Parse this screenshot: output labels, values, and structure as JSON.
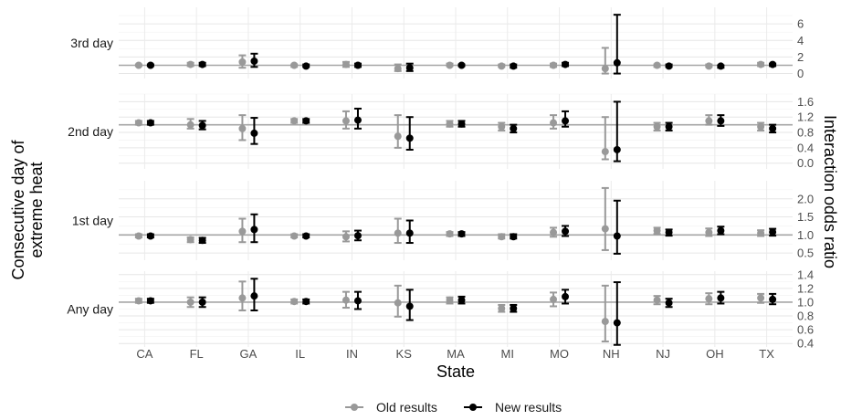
{
  "chart_data": {
    "type": "scatter",
    "subtype": "point-errorbar-facets",
    "xlabel": "State",
    "ylabel_left": [
      "Consecutive day of",
      "extreme heat"
    ],
    "ylabel_right": "Interaction odds ratio",
    "categories": [
      "CA",
      "FL",
      "GA",
      "IL",
      "IN",
      "KS",
      "MA",
      "MI",
      "MO",
      "NH",
      "NJ",
      "OH",
      "TX"
    ],
    "reference_line": 1.0,
    "grid": true,
    "legend_position": "bottom",
    "colors": {
      "old": "#999999",
      "new": "#000000",
      "reference": "#a6a6a6"
    },
    "series": [
      {
        "name": "Old results",
        "color": "#999999",
        "marker": "circle"
      },
      {
        "name": "New results",
        "color": "#000000",
        "marker": "circle"
      }
    ],
    "facets": [
      {
        "label": "3rd day",
        "ylim": [
          -0.6,
          8.0
        ],
        "yticks": [
          0,
          2,
          4,
          6
        ],
        "tick_labels": [
          "0",
          "2",
          "4",
          "6"
        ],
        "old": [
          [
            1.0,
            0.9,
            1.1
          ],
          [
            1.1,
            0.9,
            1.3
          ],
          [
            1.4,
            0.7,
            2.2
          ],
          [
            1.0,
            0.8,
            1.1
          ],
          [
            1.1,
            0.8,
            1.4
          ],
          [
            0.6,
            0.3,
            1.1
          ],
          [
            1.0,
            0.9,
            1.2
          ],
          [
            0.9,
            0.8,
            1.1
          ],
          [
            1.0,
            0.8,
            1.2
          ],
          [
            0.6,
            0.0,
            3.1
          ],
          [
            1.0,
            0.8,
            1.1
          ],
          [
            0.9,
            0.8,
            1.1
          ],
          [
            1.1,
            0.9,
            1.3
          ]
        ],
        "new": [
          [
            1.0,
            0.9,
            1.1
          ],
          [
            1.1,
            0.9,
            1.3
          ],
          [
            1.5,
            0.8,
            2.4
          ],
          [
            0.9,
            0.8,
            1.1
          ],
          [
            1.0,
            0.8,
            1.2
          ],
          [
            0.7,
            0.3,
            1.2
          ],
          [
            1.0,
            0.9,
            1.1
          ],
          [
            0.9,
            0.7,
            1.1
          ],
          [
            1.1,
            0.9,
            1.3
          ],
          [
            1.3,
            0.0,
            7.1
          ],
          [
            0.9,
            0.8,
            1.1
          ],
          [
            0.9,
            0.7,
            1.0
          ],
          [
            1.1,
            0.9,
            1.2
          ]
        ]
      },
      {
        "label": "2nd day",
        "ylim": [
          -0.15,
          1.8
        ],
        "yticks": [
          0.0,
          0.4,
          0.8,
          1.2,
          1.6
        ],
        "tick_labels": [
          "0.0",
          "0.4",
          "0.8",
          "1.2",
          "1.6"
        ],
        "old": [
          [
            1.05,
            1.0,
            1.1
          ],
          [
            1.0,
            0.9,
            1.15
          ],
          [
            0.9,
            0.6,
            1.25
          ],
          [
            1.1,
            1.05,
            1.15
          ],
          [
            1.1,
            0.9,
            1.35
          ],
          [
            0.7,
            0.4,
            1.25
          ],
          [
            1.02,
            0.95,
            1.1
          ],
          [
            0.95,
            0.85,
            1.05
          ],
          [
            1.05,
            0.9,
            1.25
          ],
          [
            0.3,
            0.1,
            1.2
          ],
          [
            0.95,
            0.85,
            1.05
          ],
          [
            1.1,
            1.0,
            1.25
          ],
          [
            0.95,
            0.85,
            1.05
          ]
        ],
        "new": [
          [
            1.05,
            1.0,
            1.1
          ],
          [
            0.98,
            0.88,
            1.1
          ],
          [
            0.78,
            0.5,
            1.18
          ],
          [
            1.1,
            1.05,
            1.15
          ],
          [
            1.12,
            0.9,
            1.42
          ],
          [
            0.65,
            0.35,
            1.2
          ],
          [
            1.02,
            0.95,
            1.1
          ],
          [
            0.9,
            0.8,
            1.0
          ],
          [
            1.1,
            0.95,
            1.35
          ],
          [
            0.35,
            0.05,
            1.6
          ],
          [
            0.95,
            0.85,
            1.05
          ],
          [
            1.1,
            0.97,
            1.25
          ],
          [
            0.9,
            0.8,
            1.0
          ]
        ]
      },
      {
        "label": "1st day",
        "ylim": [
          0.3,
          2.5
        ],
        "yticks": [
          0.5,
          1.0,
          1.5,
          2.0
        ],
        "tick_labels": [
          "0.5",
          "1.0",
          "1.5",
          "2.0"
        ],
        "old": [
          [
            0.97,
            0.93,
            1.02
          ],
          [
            0.87,
            0.8,
            0.93
          ],
          [
            1.1,
            0.8,
            1.45
          ],
          [
            0.97,
            0.93,
            1.02
          ],
          [
            0.95,
            0.82,
            1.1
          ],
          [
            1.05,
            0.78,
            1.45
          ],
          [
            1.03,
            0.97,
            1.08
          ],
          [
            0.95,
            0.9,
            1.02
          ],
          [
            1.07,
            0.95,
            1.2
          ],
          [
            1.17,
            0.58,
            2.3
          ],
          [
            1.12,
            1.03,
            1.2
          ],
          [
            1.07,
            0.97,
            1.18
          ],
          [
            1.05,
            0.97,
            1.13
          ]
        ],
        "new": [
          [
            0.97,
            0.93,
            1.02
          ],
          [
            0.85,
            0.78,
            0.92
          ],
          [
            1.15,
            0.8,
            1.57
          ],
          [
            0.97,
            0.93,
            1.02
          ],
          [
            0.98,
            0.85,
            1.12
          ],
          [
            1.05,
            0.78,
            1.4
          ],
          [
            1.03,
            0.97,
            1.08
          ],
          [
            0.95,
            0.9,
            1.02
          ],
          [
            1.1,
            0.97,
            1.25
          ],
          [
            0.97,
            0.48,
            1.95
          ],
          [
            1.07,
            0.98,
            1.15
          ],
          [
            1.12,
            1.02,
            1.23
          ],
          [
            1.08,
            0.98,
            1.17
          ]
        ]
      },
      {
        "label": "Any day",
        "ylim": [
          0.35,
          1.45
        ],
        "yticks": [
          0.4,
          0.6,
          0.8,
          1.0,
          1.2,
          1.4
        ],
        "tick_labels": [
          "0.4",
          "0.6",
          "0.8",
          "1.0",
          "1.2",
          "1.4"
        ],
        "old": [
          [
            1.02,
            0.99,
            1.05
          ],
          [
            1.0,
            0.93,
            1.07
          ],
          [
            1.06,
            0.88,
            1.3
          ],
          [
            1.01,
            0.98,
            1.04
          ],
          [
            1.03,
            0.92,
            1.15
          ],
          [
            0.99,
            0.79,
            1.24
          ],
          [
            1.03,
            0.98,
            1.07
          ],
          [
            0.91,
            0.86,
            0.96
          ],
          [
            1.04,
            0.94,
            1.14
          ],
          [
            0.72,
            0.43,
            1.24
          ],
          [
            1.03,
            0.97,
            1.09
          ],
          [
            1.05,
            0.97,
            1.13
          ],
          [
            1.06,
            0.99,
            1.12
          ]
        ],
        "new": [
          [
            1.02,
            0.99,
            1.05
          ],
          [
            1.0,
            0.93,
            1.07
          ],
          [
            1.09,
            0.88,
            1.34
          ],
          [
            1.01,
            0.98,
            1.04
          ],
          [
            1.02,
            0.9,
            1.15
          ],
          [
            0.94,
            0.74,
            1.18
          ],
          [
            1.03,
            0.98,
            1.08
          ],
          [
            0.91,
            0.86,
            0.96
          ],
          [
            1.08,
            0.98,
            1.18
          ],
          [
            0.7,
            0.38,
            1.29
          ],
          [
            0.99,
            0.93,
            1.05
          ],
          [
            1.06,
            0.98,
            1.15
          ],
          [
            1.04,
            0.97,
            1.12
          ]
        ]
      }
    ]
  }
}
